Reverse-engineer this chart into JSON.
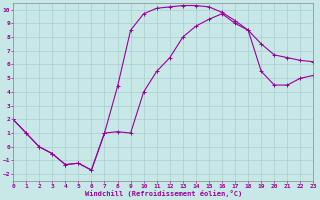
{
  "xlabel": "Windchill (Refroidissement éolien,°C)",
  "xlim": [
    0,
    23
  ],
  "ylim": [
    -2.5,
    10.5
  ],
  "xticks": [
    0,
    1,
    2,
    3,
    4,
    5,
    6,
    7,
    8,
    9,
    10,
    11,
    12,
    13,
    14,
    15,
    16,
    17,
    18,
    19,
    20,
    21,
    22,
    23
  ],
  "yticks": [
    -2,
    -1,
    0,
    1,
    2,
    3,
    4,
    5,
    6,
    7,
    8,
    9,
    10
  ],
  "line_color": "#990099",
  "bg_color": "#c8e8e8",
  "grid_color": "#aacece",
  "line1_x": [
    0,
    1,
    2,
    3,
    4,
    5,
    6,
    7,
    8,
    9,
    10,
    11,
    12,
    13,
    14,
    15,
    16,
    17,
    18,
    19,
    20,
    21,
    22,
    23
  ],
  "line1_y": [
    2.0,
    1.0,
    0.0,
    -0.5,
    -1.3,
    -1.2,
    -1.7,
    1.0,
    4.4,
    8.5,
    9.7,
    10.1,
    10.2,
    10.3,
    10.3,
    10.2,
    9.8,
    9.2,
    8.5,
    7.5,
    6.7,
    6.5,
    6.3,
    6.2
  ],
  "line2_x": [
    0,
    1,
    2,
    3,
    4,
    5,
    6,
    7,
    8,
    9,
    10,
    11,
    12,
    13,
    14,
    15,
    16,
    17,
    18,
    19,
    20,
    21,
    22,
    23
  ],
  "line2_y": [
    2.0,
    1.0,
    0.0,
    -0.5,
    -1.3,
    -1.2,
    -1.7,
    1.0,
    1.1,
    1.0,
    4.0,
    5.5,
    6.5,
    8.0,
    8.8,
    9.3,
    9.7,
    9.0,
    8.5,
    5.5,
    4.5,
    4.5,
    5.0,
    5.2
  ]
}
